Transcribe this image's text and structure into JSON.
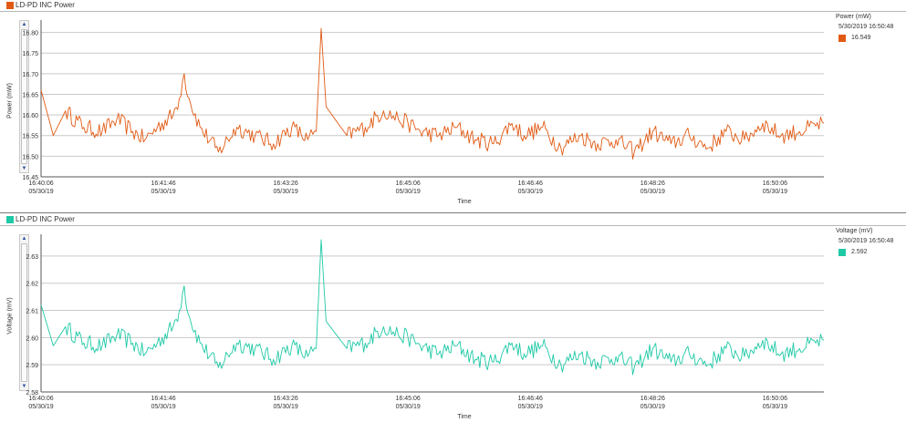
{
  "chart_data": [
    {
      "type": "line",
      "panel_title": "LD-PD INC Power",
      "ylabel": "Power (mW)",
      "xlabel": "Time",
      "color": "#e15a13",
      "ylim": [
        16.45,
        16.83
      ],
      "yticks": [
        16.45,
        16.5,
        16.55,
        16.6,
        16.65,
        16.7,
        16.75,
        16.8
      ],
      "ytick_labels": [
        "16.45",
        "16.50",
        "16.55",
        "16.60",
        "16.65",
        "16.70",
        "16.75",
        "16.80"
      ],
      "xticks": [
        {
          "time": "16:40:06",
          "date": "05/30/19"
        },
        {
          "time": "16:41:46",
          "date": "05/30/19"
        },
        {
          "time": "16:43:26",
          "date": "05/30/19"
        },
        {
          "time": "16:45:06",
          "date": "05/30/19"
        },
        {
          "time": "16:46:46",
          "date": "05/30/19"
        },
        {
          "time": "16:48:26",
          "date": "05/30/19"
        },
        {
          "time": "16:50:06",
          "date": "05/30/19"
        }
      ],
      "legend": {
        "title": "Power (mW)",
        "timestamp": "5/30/2019 16:50:48",
        "value": "16.549"
      },
      "x_seconds": [
        0,
        10,
        20,
        35,
        50,
        62,
        75,
        85,
        95,
        108,
        113,
        117,
        121,
        130,
        145,
        160,
        175,
        190,
        205,
        218,
        225,
        229,
        233,
        250,
        265,
        280,
        292,
        300,
        310,
        325,
        340,
        355,
        370,
        385,
        395,
        410,
        425,
        440,
        455,
        470,
        485,
        500,
        515,
        530,
        545,
        560,
        575,
        590,
        605,
        620,
        640
      ],
      "values": [
        16.66,
        16.55,
        16.61,
        16.57,
        16.56,
        16.59,
        16.56,
        16.54,
        16.57,
        16.6,
        16.64,
        16.7,
        16.64,
        16.57,
        16.51,
        16.57,
        16.55,
        16.53,
        16.57,
        16.54,
        16.56,
        16.81,
        16.62,
        16.55,
        16.57,
        16.61,
        16.59,
        16.58,
        16.56,
        16.55,
        16.57,
        16.54,
        16.53,
        16.58,
        16.55,
        16.57,
        16.52,
        16.55,
        16.53,
        16.54,
        16.51,
        16.56,
        16.53,
        16.55,
        16.52,
        16.56,
        16.54,
        16.58,
        16.55,
        16.56,
        16.58
      ]
    },
    {
      "type": "line",
      "panel_title": "LD-PD INC Power",
      "ylabel": "Voltage (mV)",
      "xlabel": "Time",
      "color": "#1ec9a6",
      "ylim": [
        2.58,
        2.638
      ],
      "yticks": [
        2.58,
        2.59,
        2.6,
        2.61,
        2.62,
        2.63
      ],
      "ytick_labels": [
        "2.58",
        "2.59",
        "2.60",
        "2.61",
        "2.62",
        "2.63"
      ],
      "xticks": [
        {
          "time": "16:40:06",
          "date": "05/30/19"
        },
        {
          "time": "16:41:46",
          "date": "05/30/19"
        },
        {
          "time": "16:43:26",
          "date": "05/30/19"
        },
        {
          "time": "16:45:06",
          "date": "05/30/19"
        },
        {
          "time": "16:46:46",
          "date": "05/30/19"
        },
        {
          "time": "16:48:26",
          "date": "05/30/19"
        },
        {
          "time": "16:50:06",
          "date": "05/30/19"
        }
      ],
      "legend": {
        "title": "Voltage (mV)",
        "timestamp": "5/30/2019 16:50:48",
        "value": "2.592"
      },
      "x_seconds": [
        0,
        10,
        20,
        35,
        50,
        62,
        75,
        85,
        95,
        108,
        113,
        117,
        121,
        130,
        145,
        160,
        175,
        190,
        205,
        218,
        225,
        229,
        233,
        250,
        265,
        280,
        292,
        300,
        310,
        325,
        340,
        355,
        370,
        385,
        395,
        410,
        425,
        440,
        455,
        470,
        485,
        500,
        515,
        530,
        545,
        560,
        575,
        590,
        605,
        620,
        640
      ],
      "values": [
        2.612,
        2.597,
        2.604,
        2.598,
        2.597,
        2.601,
        2.598,
        2.594,
        2.598,
        2.604,
        2.61,
        2.619,
        2.608,
        2.598,
        2.589,
        2.598,
        2.596,
        2.592,
        2.597,
        2.593,
        2.596,
        2.636,
        2.606,
        2.596,
        2.598,
        2.604,
        2.601,
        2.6,
        2.597,
        2.594,
        2.597,
        2.592,
        2.591,
        2.598,
        2.594,
        2.597,
        2.59,
        2.594,
        2.591,
        2.593,
        2.589,
        2.596,
        2.591,
        2.594,
        2.59,
        2.596,
        2.593,
        2.599,
        2.594,
        2.596,
        2.599
      ]
    }
  ]
}
